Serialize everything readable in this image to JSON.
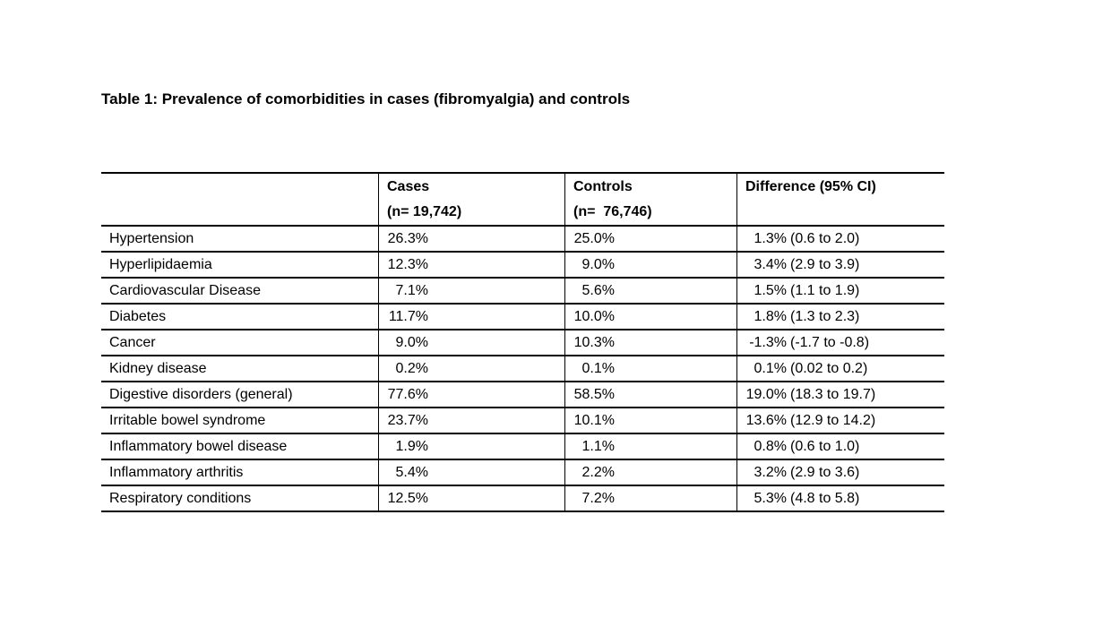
{
  "title": "Table 1: Prevalence of comorbidities in cases (fibromyalgia) and controls",
  "table": {
    "header": {
      "condition": "",
      "cases": "Cases",
      "cases_n": "(n= 19,742)",
      "controls": "Controls",
      "controls_n": "(n=  76,746)",
      "difference": "Difference (95% CI)"
    },
    "rows": [
      {
        "label": "Hypertension",
        "cases": "26.3%",
        "controls": "25.0%",
        "diff": "1.3%",
        "ci": "(0.6 to 2.0)"
      },
      {
        "label": "Hyperlipidaemia",
        "cases": "12.3%",
        "controls": "9.0%",
        "diff": "3.4%",
        "ci": "(2.9 to 3.9)"
      },
      {
        "label": "Cardiovascular Disease",
        "cases": "7.1%",
        "controls": "5.6%",
        "diff": "1.5%",
        "ci": "(1.1 to 1.9)"
      },
      {
        "label": "Diabetes",
        "cases": "11.7%",
        "controls": "10.0%",
        "diff": "1.8%",
        "ci": "(1.3 to 2.3)"
      },
      {
        "label": "Cancer",
        "cases": "9.0%",
        "controls": "10.3%",
        "diff": "-1.3%",
        "ci": "(-1.7 to -0.8)"
      },
      {
        "label": "Kidney disease",
        "cases": "0.2%",
        "controls": "0.1%",
        "diff": "0.1%",
        "ci": "(0.02 to 0.2)"
      },
      {
        "label": "Digestive disorders (general)",
        "cases": "77.6%",
        "controls": "58.5%",
        "diff": "19.0%",
        "ci": "(18.3 to 19.7)"
      },
      {
        "label": "Irritable bowel syndrome",
        "cases": "23.7%",
        "controls": "10.1%",
        "diff": "13.6%",
        "ci": "(12.9 to 14.2)"
      },
      {
        "label": "Inflammatory bowel disease",
        "cases": "1.9%",
        "controls": "1.1%",
        "diff": "0.8%",
        "ci": "(0.6 to 1.0)"
      },
      {
        "label": "Inflammatory arthritis",
        "cases": "5.4%",
        "controls": "2.2%",
        "diff": "3.2%",
        "ci": "(2.9 to 3.6)"
      },
      {
        "label": "Respiratory conditions",
        "cases": "12.5%",
        "controls": "7.2%",
        "diff": "5.3%",
        "ci": "(4.8 to 5.8)"
      }
    ]
  }
}
